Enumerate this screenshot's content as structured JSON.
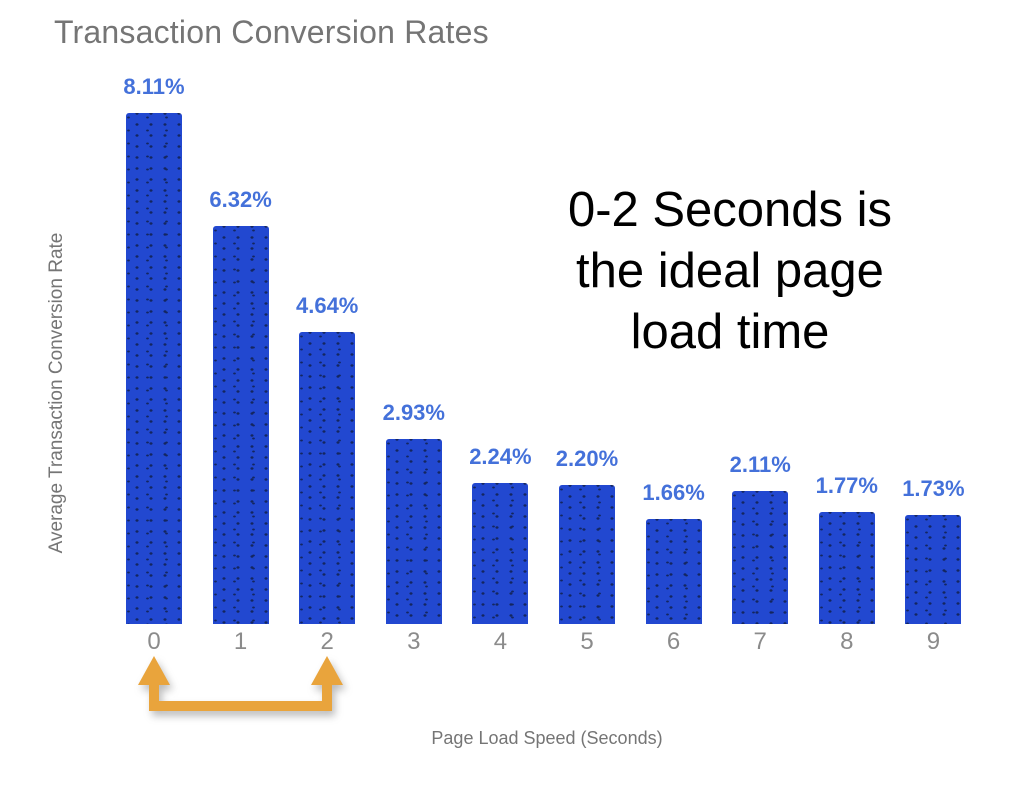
{
  "chart_data": {
    "type": "bar",
    "title": "Transaction Conversion Rates",
    "xlabel": "Page Load Speed (Seconds)",
    "ylabel": "Average Transaction Conversion Rate",
    "categories": [
      "0",
      "1",
      "2",
      "3",
      "4",
      "5",
      "6",
      "7",
      "8",
      "9"
    ],
    "values": [
      8.11,
      6.32,
      4.64,
      2.93,
      2.24,
      2.2,
      1.66,
      2.11,
      1.77,
      1.73
    ],
    "value_labels": [
      "8.11%",
      "6.32%",
      "4.64%",
      "2.93%",
      "2.24%",
      "2.20%",
      "1.66%",
      "2.11%",
      "1.77%",
      "1.73%"
    ],
    "ylim": [
      0,
      8.11
    ],
    "grid": false,
    "legend": "none",
    "bar_color": "#2248d0",
    "bar_dot_color": "#14265f",
    "label_color": "#4471da",
    "title_color": "#757575",
    "axis_title_color": "#757575",
    "tick_color": "#8b8b8b"
  },
  "annotation": {
    "lines": [
      "0-2 Seconds is",
      "the ideal page",
      "load time"
    ],
    "color": "#000000"
  },
  "highlight_arrow": {
    "meaning": "double up-arrow bracket linking category 0 to category 2",
    "from_category": "0",
    "to_category": "2",
    "color": "#e9a43c"
  }
}
